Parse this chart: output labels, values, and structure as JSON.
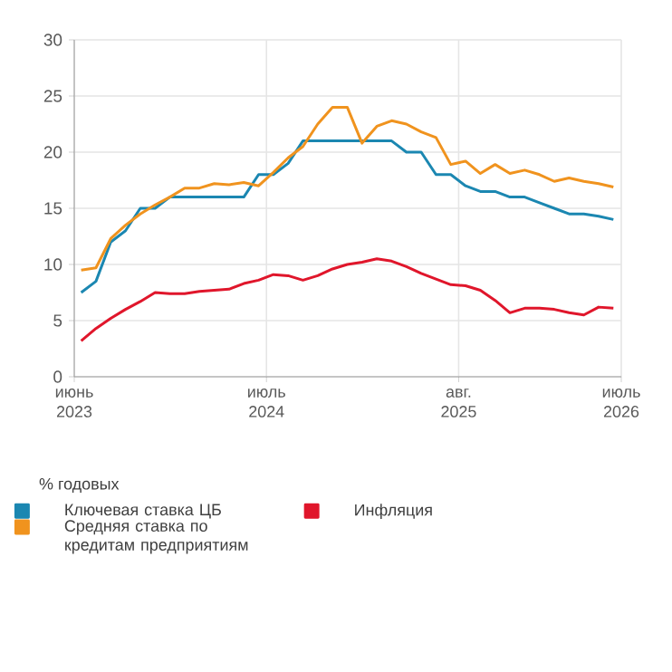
{
  "chart_data": {
    "type": "line",
    "ylabel": "% годовых",
    "x": [
      "2023-06-15",
      "2023-07-15",
      "2023-08-15",
      "2023-09-15",
      "2023-10-15",
      "2023-11-15",
      "2023-12-15",
      "2024-01-15",
      "2024-02-15",
      "2024-03-15",
      "2024-04-15",
      "2024-05-15",
      "2024-06-15",
      "2024-07-15",
      "2024-08-15",
      "2024-09-15",
      "2024-10-15",
      "2024-11-15",
      "2024-12-15",
      "2025-01-15",
      "2025-02-15",
      "2025-03-15",
      "2025-04-15",
      "2025-05-15",
      "2025-06-15",
      "2025-07-15",
      "2025-08-15",
      "2025-09-15",
      "2025-10-15",
      "2025-11-15",
      "2025-12-15",
      "2026-01-15",
      "2026-02-15",
      "2026-03-15",
      "2026-04-15",
      "2026-05-15",
      "2026-06-15"
    ],
    "series": [
      {
        "name": "Ключевая ставка ЦБ",
        "color": "#1b87b1",
        "values": [
          7.5,
          8.5,
          12,
          13,
          15,
          15,
          16,
          16,
          16,
          16,
          16,
          16,
          18,
          18,
          19,
          21,
          21,
          21,
          21,
          21,
          21,
          21,
          20,
          20,
          18,
          18,
          17,
          16.5,
          16.5,
          16,
          16,
          15.5,
          15,
          14.5,
          14.5,
          14.3,
          14
        ]
      },
      {
        "name": "Средняя ставка по кредитам предприятиям",
        "color": "#f0931e",
        "values": [
          9.5,
          9.7,
          12.3,
          13.5,
          14.5,
          15.3,
          16,
          16.8,
          16.8,
          17.2,
          17.1,
          17.3,
          17,
          18.2,
          19.5,
          20.5,
          22.5,
          24,
          24,
          20.8,
          22.3,
          22.8,
          22.5,
          21.8,
          21.3,
          18.9,
          19.2,
          18.1,
          18.9,
          18.1,
          18.4,
          18,
          17.4,
          17.7,
          17.4,
          17.2,
          16.9
        ]
      },
      {
        "name": "Инфляция",
        "color": "#e0162b",
        "values": [
          3.2,
          4.3,
          5.2,
          6,
          6.7,
          7.5,
          7.4,
          7.4,
          7.6,
          7.7,
          7.8,
          8.3,
          8.6,
          9.1,
          9,
          8.6,
          9,
          9.6,
          10,
          10.2,
          10.5,
          10.3,
          9.8,
          9.2,
          8.7,
          8.2,
          8.1,
          7.7,
          6.8,
          5.7,
          6.1,
          6.1,
          6,
          5.7,
          5.5,
          6.2,
          6.1
        ]
      }
    ],
    "xlim": [
      "2023-06",
      "2026-07"
    ],
    "xticks": [
      {
        "value": "2023-06",
        "label": "июнь 2023"
      },
      {
        "value": "2024-07",
        "label": "июль 2024"
      },
      {
        "value": "2025-08",
        "label": "авг. 2025"
      },
      {
        "value": "2026-07",
        "label": "июль 2026"
      }
    ],
    "ylim": [
      0,
      30
    ],
    "yticks": [
      0,
      5,
      10,
      15,
      20,
      25,
      30
    ],
    "grid": true,
    "legend": "bottom",
    "marker": "none",
    "line_style": "solid"
  }
}
